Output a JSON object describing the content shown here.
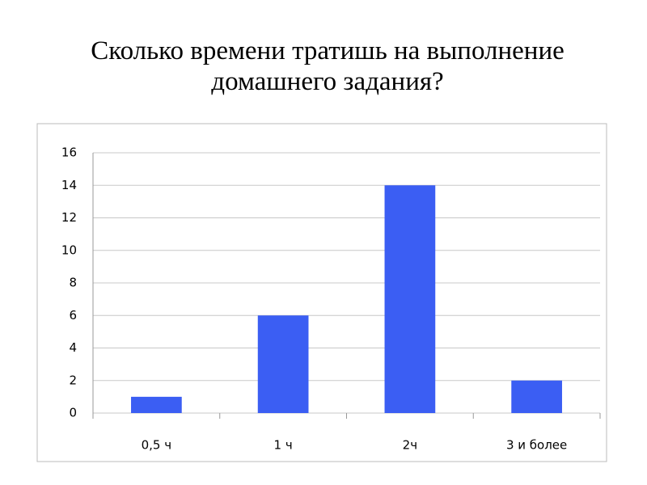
{
  "chart_data": {
    "type": "bar",
    "title": "Сколько времени тратишь на выполнение домашнего задания?",
    "categories": [
      "0,5 ч",
      "1 ч",
      "2ч",
      "3 и более"
    ],
    "values": [
      1,
      6,
      14,
      2
    ],
    "color": "#3b5ef3",
    "ylim": [
      0,
      16
    ],
    "yticks": [
      0,
      2,
      4,
      6,
      8,
      10,
      12,
      14,
      16
    ],
    "grid": true
  }
}
